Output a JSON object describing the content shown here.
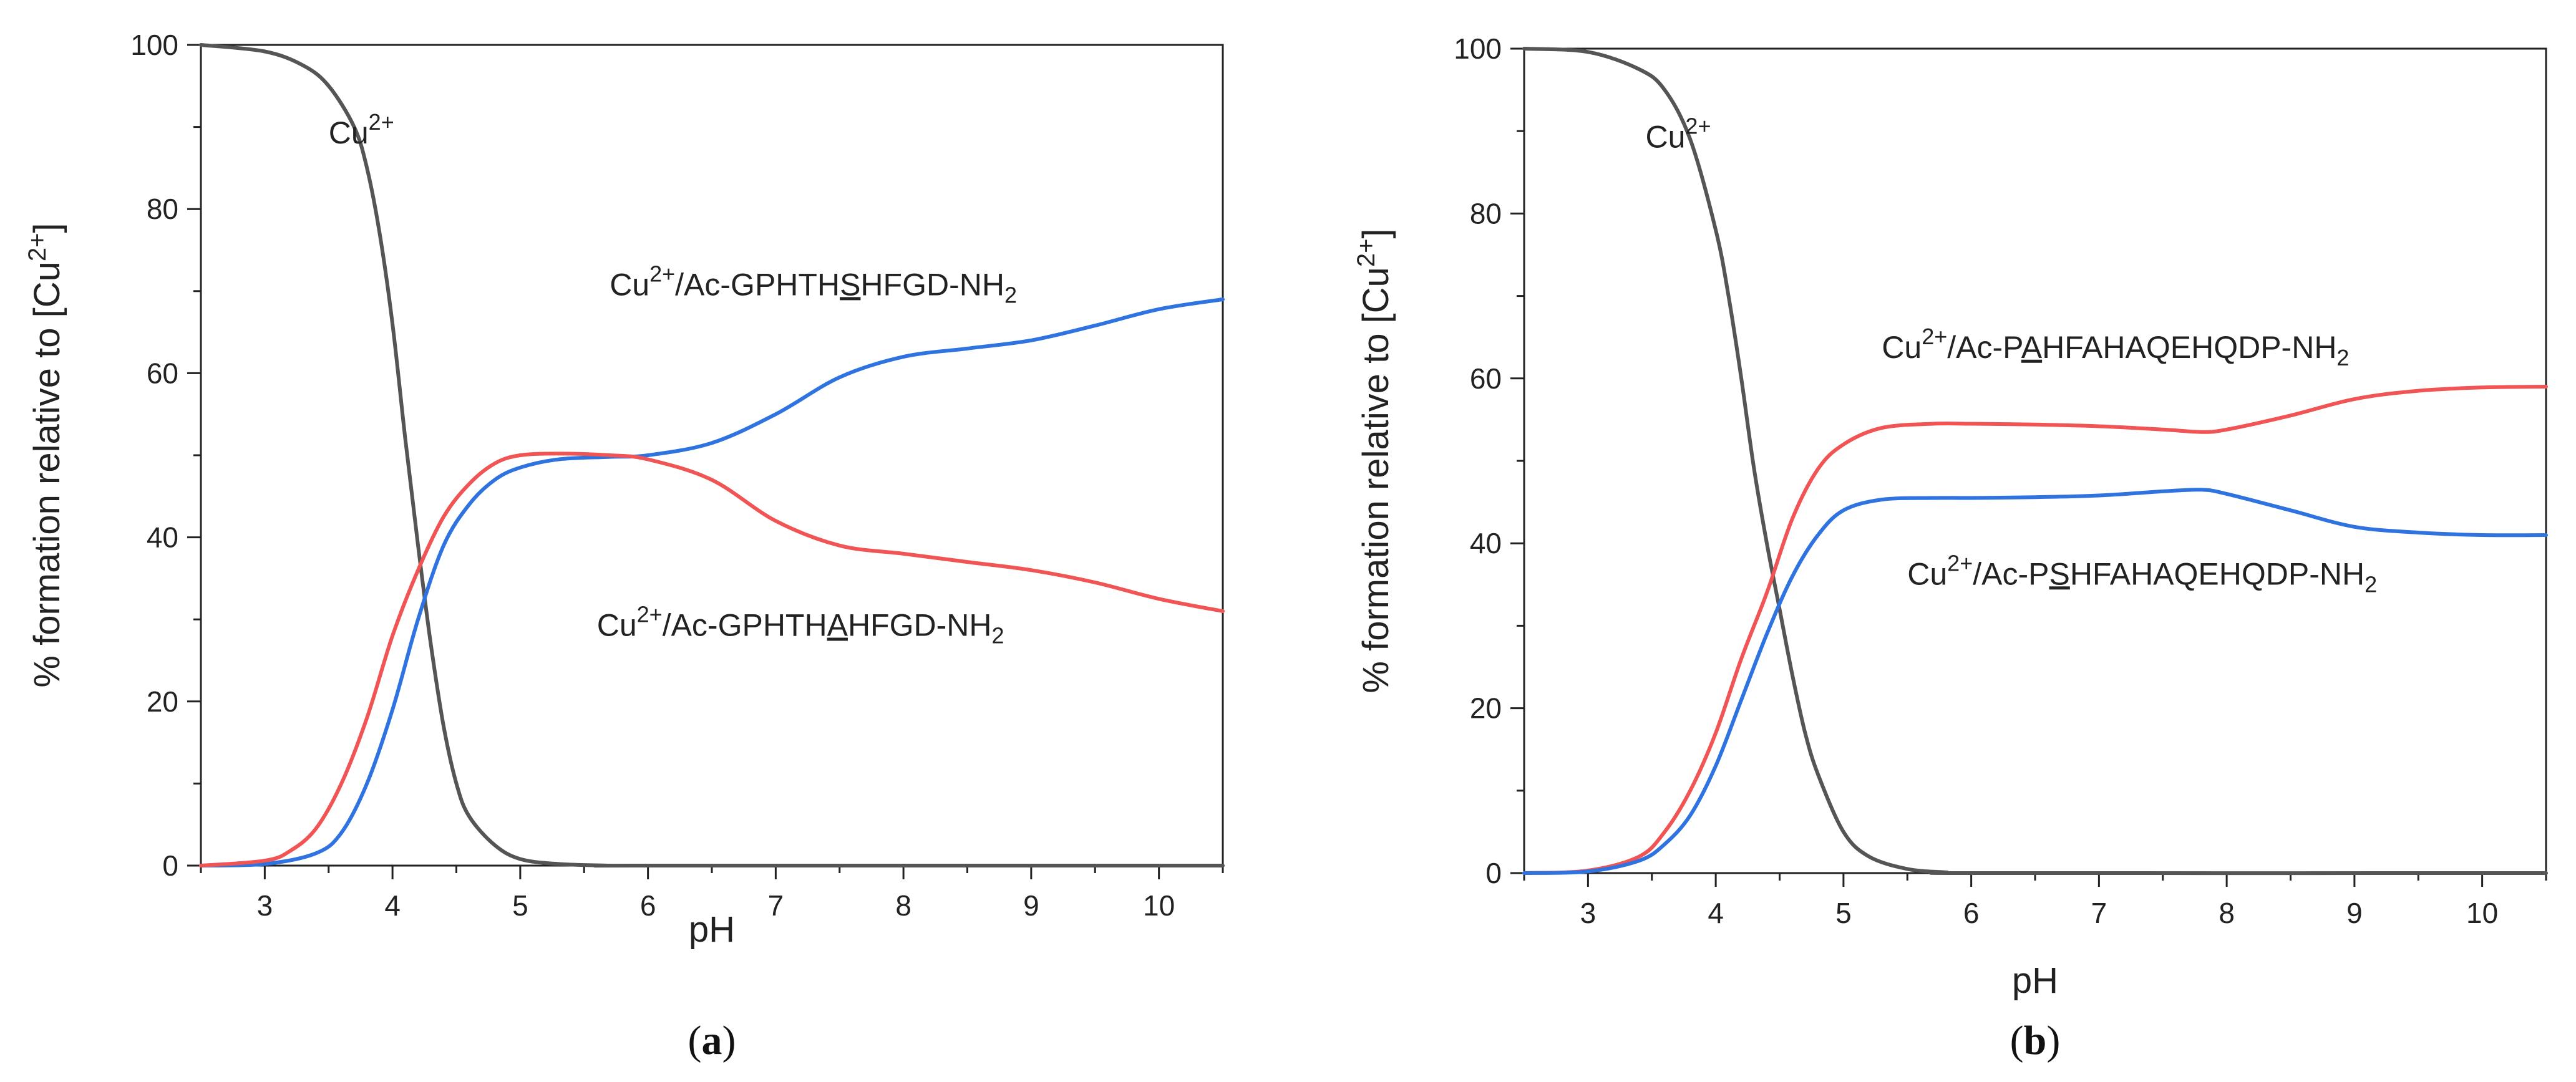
{
  "colors": {
    "cu": "#555555",
    "red": "#f05454",
    "blue": "#2f73e0",
    "axis": "#222222"
  },
  "chart_data": [
    {
      "id": "a",
      "type": "line",
      "panel_letter": "a",
      "xlabel": "pH",
      "ylabel_main": "% formation relative to [Cu",
      "ylabel_sup": "2+",
      "ylabel_close": "]",
      "xlim": [
        2.5,
        10.5
      ],
      "ylim": [
        0,
        100
      ],
      "xticks": [
        3,
        4,
        5,
        6,
        7,
        8,
        9,
        10
      ],
      "yticks": [
        0,
        20,
        40,
        60,
        80,
        100
      ],
      "series": [
        {
          "name": "Cu2+",
          "color_key": "cu",
          "label": {
            "parts": [
              {
                "t": "Cu"
              },
              {
                "t": "2+",
                "sup": true
              }
            ]
          },
          "label_anchor": [
            3.5,
            88
          ],
          "x": [
            2.5,
            3.0,
            3.3,
            3.5,
            3.7,
            3.8,
            3.9,
            4.0,
            4.1,
            4.2,
            4.3,
            4.4,
            4.5,
            4.6,
            4.8,
            5.0,
            5.3,
            5.7,
            6.0,
            10.5
          ],
          "y": [
            100,
            99.2,
            97.5,
            95,
            90,
            85,
            77,
            66,
            52,
            39,
            27,
            17,
            10,
            6,
            2.5,
            0.8,
            0.2,
            0,
            0,
            0
          ]
        },
        {
          "name": "Cu2+/Ac-GPHTHSHFGD-NH2",
          "color_key": "blue",
          "label": {
            "parts": [
              {
                "t": "Cu"
              },
              {
                "t": "2+",
                "sup": true
              },
              {
                "t": "/Ac-GPHTH"
              },
              {
                "t": "S",
                "u": true
              },
              {
                "t": "HFGD-NH"
              },
              {
                "t": "2",
                "sub": true
              }
            ]
          },
          "label_anchor": [
            5.7,
            69.5
          ],
          "x": [
            2.5,
            3.0,
            3.4,
            3.6,
            3.8,
            4.0,
            4.2,
            4.4,
            4.6,
            4.8,
            5.0,
            5.3,
            5.7,
            6.0,
            6.5,
            7.0,
            7.5,
            8.0,
            8.5,
            9.0,
            9.5,
            10.0,
            10.5
          ],
          "y": [
            0,
            0.2,
            1.5,
            4,
            10,
            19,
            30,
            39,
            44,
            47,
            48.5,
            49.5,
            49.8,
            50,
            51.5,
            55,
            59.5,
            62,
            63,
            64,
            65.8,
            67.8,
            69
          ]
        },
        {
          "name": "Cu2+/Ac-GPHTHAHFGD-NH2",
          "color_key": "red",
          "label": {
            "parts": [
              {
                "t": "Cu"
              },
              {
                "t": "2+",
                "sup": true
              },
              {
                "t": "/Ac-GPHTH"
              },
              {
                "t": "A",
                "u": true
              },
              {
                "t": "HFGD-NH"
              },
              {
                "t": "2",
                "sub": true
              }
            ]
          },
          "label_anchor": [
            5.6,
            28
          ],
          "x": [
            2.5,
            3.0,
            3.2,
            3.4,
            3.6,
            3.8,
            4.0,
            4.2,
            4.4,
            4.6,
            4.8,
            5.0,
            5.3,
            5.7,
            6.0,
            6.5,
            7.0,
            7.5,
            8.0,
            8.5,
            9.0,
            9.5,
            10.0,
            10.5
          ],
          "y": [
            0,
            0.6,
            1.8,
            4.5,
            10,
            18,
            28,
            36,
            42.5,
            46.5,
            49,
            50,
            50.2,
            50,
            49.5,
            47,
            42,
            39,
            38,
            37,
            36,
            34.5,
            32.5,
            31
          ]
        }
      ]
    },
    {
      "id": "b",
      "type": "line",
      "panel_letter": "b",
      "xlabel": "pH",
      "ylabel_main": "% formation relative to [Cu",
      "ylabel_sup": "2+",
      "ylabel_close": "]",
      "xlim": [
        2.5,
        10.5
      ],
      "ylim": [
        0,
        100
      ],
      "xticks": [
        3,
        4,
        5,
        6,
        7,
        8,
        9,
        10
      ],
      "yticks": [
        0,
        20,
        40,
        60,
        80,
        100
      ],
      "series": [
        {
          "name": "Cu2+",
          "color_key": "cu",
          "label": {
            "parts": [
              {
                "t": "Cu"
              },
              {
                "t": "2+",
                "sup": true
              }
            ]
          },
          "label_anchor": [
            3.45,
            88
          ],
          "x": [
            2.5,
            3.0,
            3.4,
            3.6,
            3.8,
            4.0,
            4.1,
            4.2,
            4.3,
            4.4,
            4.5,
            4.6,
            4.7,
            4.8,
            5.0,
            5.2,
            5.5,
            5.8,
            6.1,
            10.5
          ],
          "y": [
            100,
            99.6,
            97.5,
            95,
            89,
            78,
            70,
            60,
            49,
            40,
            32,
            24,
            17,
            12,
            5,
            2,
            0.5,
            0.1,
            0,
            0
          ]
        },
        {
          "name": "Cu2+/Ac-PAHFAHAQEHQDP-NH2",
          "color_key": "red",
          "label": {
            "parts": [
              {
                "t": "Cu"
              },
              {
                "t": "2+",
                "sup": true
              },
              {
                "t": "/Ac-P"
              },
              {
                "t": "A",
                "u": true
              },
              {
                "t": "HFAHAQEHQDP-NH"
              },
              {
                "t": "2",
                "sub": true
              }
            ]
          },
          "label_anchor": [
            5.3,
            62.5
          ],
          "x": [
            2.5,
            3.0,
            3.4,
            3.6,
            3.8,
            4.0,
            4.2,
            4.4,
            4.6,
            4.8,
            5.0,
            5.3,
            5.7,
            6.0,
            6.5,
            7.0,
            7.5,
            7.8,
            8.0,
            8.5,
            9.0,
            9.5,
            10.0,
            10.5
          ],
          "y": [
            0,
            0.3,
            2,
            5,
            10,
            17,
            26,
            34,
            43,
            49,
            52,
            54,
            54.5,
            54.5,
            54.4,
            54.2,
            53.8,
            53.5,
            53.8,
            55.5,
            57.5,
            58.5,
            58.9,
            59
          ]
        },
        {
          "name": "Cu2+/Ac-PSHFAHAQEHQDP-NH2",
          "color_key": "blue",
          "label": {
            "parts": [
              {
                "t": "Cu"
              },
              {
                "t": "2+",
                "sup": true
              },
              {
                "t": "/Ac-P"
              },
              {
                "t": "S",
                "u": true
              },
              {
                "t": "HFAHAQEHQDP-NH"
              },
              {
                "t": "2",
                "sub": true
              }
            ]
          },
          "label_anchor": [
            5.5,
            35
          ],
          "x": [
            2.5,
            3.0,
            3.4,
            3.6,
            3.8,
            4.0,
            4.2,
            4.4,
            4.6,
            4.8,
            5.0,
            5.3,
            5.7,
            6.0,
            6.5,
            7.0,
            7.5,
            7.8,
            8.0,
            8.5,
            9.0,
            9.5,
            10.0,
            10.5
          ],
          "y": [
            0,
            0.2,
            1.5,
            3.5,
            7,
            13,
            21,
            29,
            36,
            41,
            44,
            45.3,
            45.5,
            45.5,
            45.6,
            45.8,
            46.3,
            46.5,
            46,
            44,
            42,
            41.3,
            41,
            41
          ]
        }
      ]
    }
  ]
}
